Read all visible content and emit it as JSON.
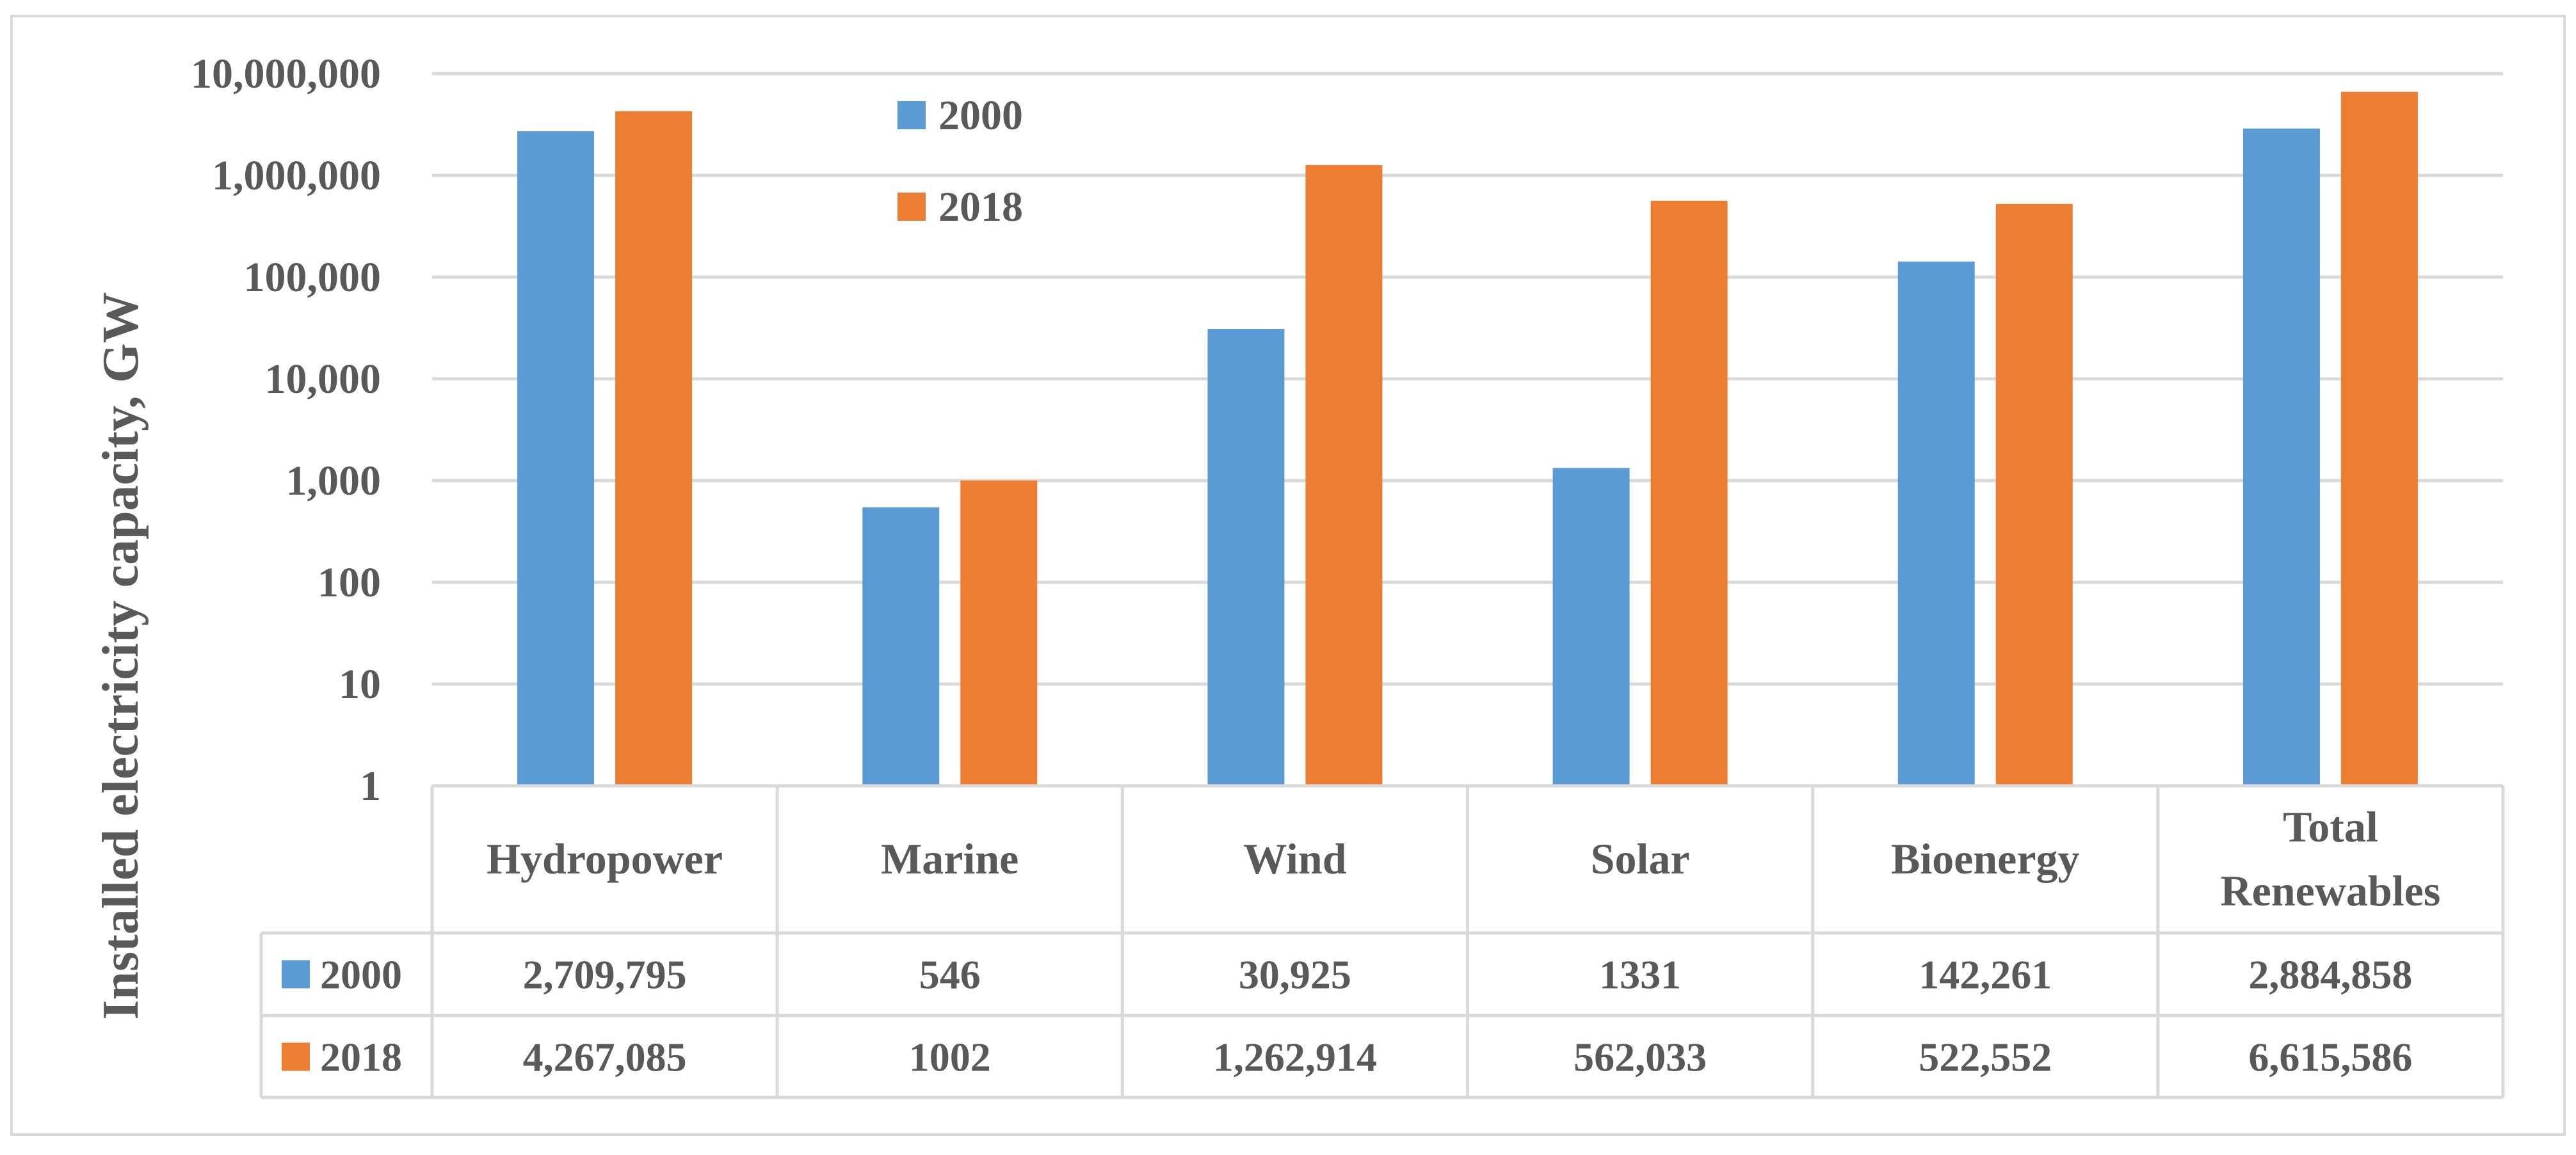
{
  "chart_data": {
    "type": "bar",
    "scale": "log",
    "title": "",
    "ylabel": "Installed electricity capacity, GW",
    "xlabel": "",
    "ylim": [
      1,
      10000000
    ],
    "y_ticks": [
      "1",
      "10",
      "100",
      "1,000",
      "10,000",
      "100,000",
      "1,000,000",
      "10,000,000"
    ],
    "grid": true,
    "legend_position": "top-center",
    "categories": [
      "Hydropower",
      "Marine",
      "Wind",
      "Solar",
      "Bioenergy",
      "Total Renewables"
    ],
    "series": [
      {
        "name": "2000",
        "color": "#5B9BD5",
        "values": [
          2709795,
          546,
          30925,
          1331,
          142261,
          2884858
        ],
        "labels": [
          "2,709,795",
          "546",
          "30,925",
          "1331",
          "142,261",
          "2,884,858"
        ]
      },
      {
        "name": "2018",
        "color": "#ED7D31",
        "values": [
          4267085,
          1002,
          1262914,
          562033,
          522552,
          6615586
        ],
        "labels": [
          "4,267,085",
          "1002",
          "1,262,914",
          "562,033",
          "522,552",
          "6,615,586"
        ]
      }
    ]
  }
}
